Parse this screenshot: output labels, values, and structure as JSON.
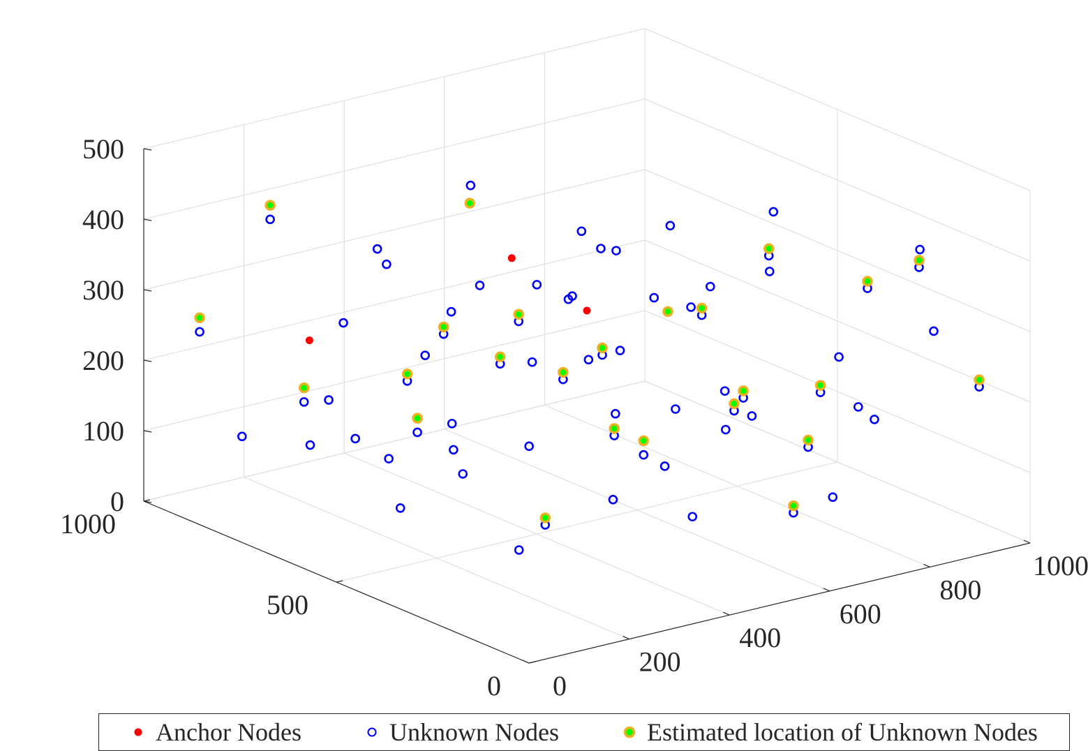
{
  "chart_data": {
    "type": "scatter3d",
    "title": "",
    "xlabel": "",
    "ylabel": "",
    "zlabel": "",
    "xlim": [
      0,
      1000
    ],
    "ylim": [
      0,
      1000
    ],
    "zlim": [
      0,
      500
    ],
    "x_ticks": [
      "0",
      "200",
      "400",
      "600",
      "800",
      "1000"
    ],
    "y_ticks": [
      "0",
      "500",
      "1000"
    ],
    "z_ticks": [
      "0",
      "100",
      "200",
      "300",
      "400",
      "500"
    ],
    "grid": true,
    "legend_position": "bottom",
    "colors": {
      "anchor": "#ff0000",
      "unknown": "#0000ff",
      "estimated_fill": "#00ff00",
      "estimated_edge": "#edb120",
      "error_marker": "#dd0000"
    },
    "series": [
      {
        "name": "Anchor Nodes",
        "marker": "filled-dot",
        "points": [
          [
            500,
            500,
            300
          ],
          [
            350,
            500,
            400
          ],
          [
            100,
            700,
            280
          ]
        ]
      },
      {
        "name": "Unknown Nodes",
        "marker": "circle",
        "points": [
          [
            520,
            120,
            260
          ],
          [
            860,
            240,
            330
          ],
          [
            120,
            740,
            180
          ],
          [
            210,
            300,
            380
          ],
          [
            880,
            420,
            60
          ],
          [
            440,
            700,
            300
          ],
          [
            300,
            680,
            120
          ],
          [
            640,
            300,
            180
          ],
          [
            980,
            420,
            100
          ],
          [
            760,
            540,
            240
          ],
          [
            50,
            920,
            250
          ],
          [
            420,
            320,
            440
          ],
          [
            330,
            880,
            60
          ],
          [
            600,
            360,
            320
          ],
          [
            160,
            880,
            400
          ],
          [
            720,
            180,
            220
          ],
          [
            260,
            820,
            250
          ],
          [
            560,
            640,
            160
          ],
          [
            480,
            200,
            80
          ],
          [
            900,
            120,
            290
          ],
          [
            690,
            600,
            40
          ],
          [
            370,
            260,
            200
          ],
          [
            120,
            520,
            150
          ],
          [
            820,
            700,
            320
          ],
          [
            250,
            400,
            290
          ],
          [
            960,
            80,
            210
          ],
          [
            40,
            620,
            160
          ],
          [
            560,
            880,
            380
          ],
          [
            680,
            260,
            380
          ],
          [
            400,
            520,
            120
          ],
          [
            300,
            200,
            340
          ],
          [
            780,
            380,
            420
          ],
          [
            150,
            940,
            80
          ],
          [
            880,
            820,
            180
          ],
          [
            620,
            120,
            80
          ],
          [
            460,
            820,
            200
          ],
          [
            220,
            620,
            40
          ],
          [
            700,
            400,
            120
          ],
          [
            940,
            600,
            280
          ],
          [
            360,
            460,
            260
          ],
          [
            80,
            420,
            290
          ],
          [
            520,
            540,
            400
          ],
          [
            260,
            120,
            160
          ],
          [
            840,
            80,
            400
          ],
          [
            600,
            760,
            260
          ],
          [
            180,
            260,
            70
          ],
          [
            420,
            940,
            300
          ],
          [
            760,
            200,
            60
          ],
          [
            340,
            340,
            380
          ],
          [
            640,
            480,
            60
          ],
          [
            560,
            220,
            240
          ],
          [
            200,
            460,
            200
          ],
          [
            920,
            300,
            120
          ],
          [
            480,
            400,
            180
          ],
          [
            300,
            760,
            340
          ],
          [
            720,
            700,
            160
          ],
          [
            140,
            140,
            140
          ],
          [
            860,
            540,
            80
          ],
          [
            400,
            140,
            260
          ],
          [
            620,
            620,
            340
          ],
          [
            80,
            300,
            220
          ],
          [
            980,
            260,
            360
          ],
          [
            500,
            920,
            140
          ],
          [
            260,
            540,
            330
          ],
          [
            780,
            860,
            100
          ],
          [
            360,
            640,
            60
          ],
          [
            680,
            80,
            300
          ],
          [
            200,
            780,
            160
          ],
          [
            900,
            700,
            220
          ],
          [
            440,
            460,
            340
          ]
        ]
      },
      {
        "name": "Estimated location of Unknown Nodes",
        "marker": "filled-circle",
        "points": [
          [
            420,
            700,
            420
          ],
          [
            600,
            420,
            300
          ],
          [
            880,
            420,
            70
          ],
          [
            120,
            740,
            200
          ],
          [
            300,
            680,
            140
          ],
          [
            760,
            540,
            250
          ],
          [
            50,
            920,
            270
          ],
          [
            640,
            300,
            190
          ],
          [
            520,
            120,
            270
          ],
          [
            860,
            240,
            340
          ],
          [
            210,
            300,
            390
          ],
          [
            690,
            600,
            60
          ],
          [
            720,
            180,
            230
          ],
          [
            370,
            260,
            210
          ],
          [
            250,
            400,
            300
          ],
          [
            960,
            80,
            220
          ],
          [
            160,
            880,
            420
          ],
          [
            560,
            640,
            170
          ],
          [
            940,
            600,
            290
          ],
          [
            300,
            200,
            350
          ],
          [
            80,
            420,
            300
          ],
          [
            620,
            120,
            90
          ],
          [
            460,
            820,
            210
          ],
          [
            840,
            80,
            410
          ],
          [
            140,
            140,
            150
          ]
        ]
      }
    ]
  },
  "legend": {
    "anchor_label": "Anchor Nodes",
    "unknown_label": "Unknown Nodes",
    "estimated_label": "Estimated location of Unknown Nodes"
  }
}
